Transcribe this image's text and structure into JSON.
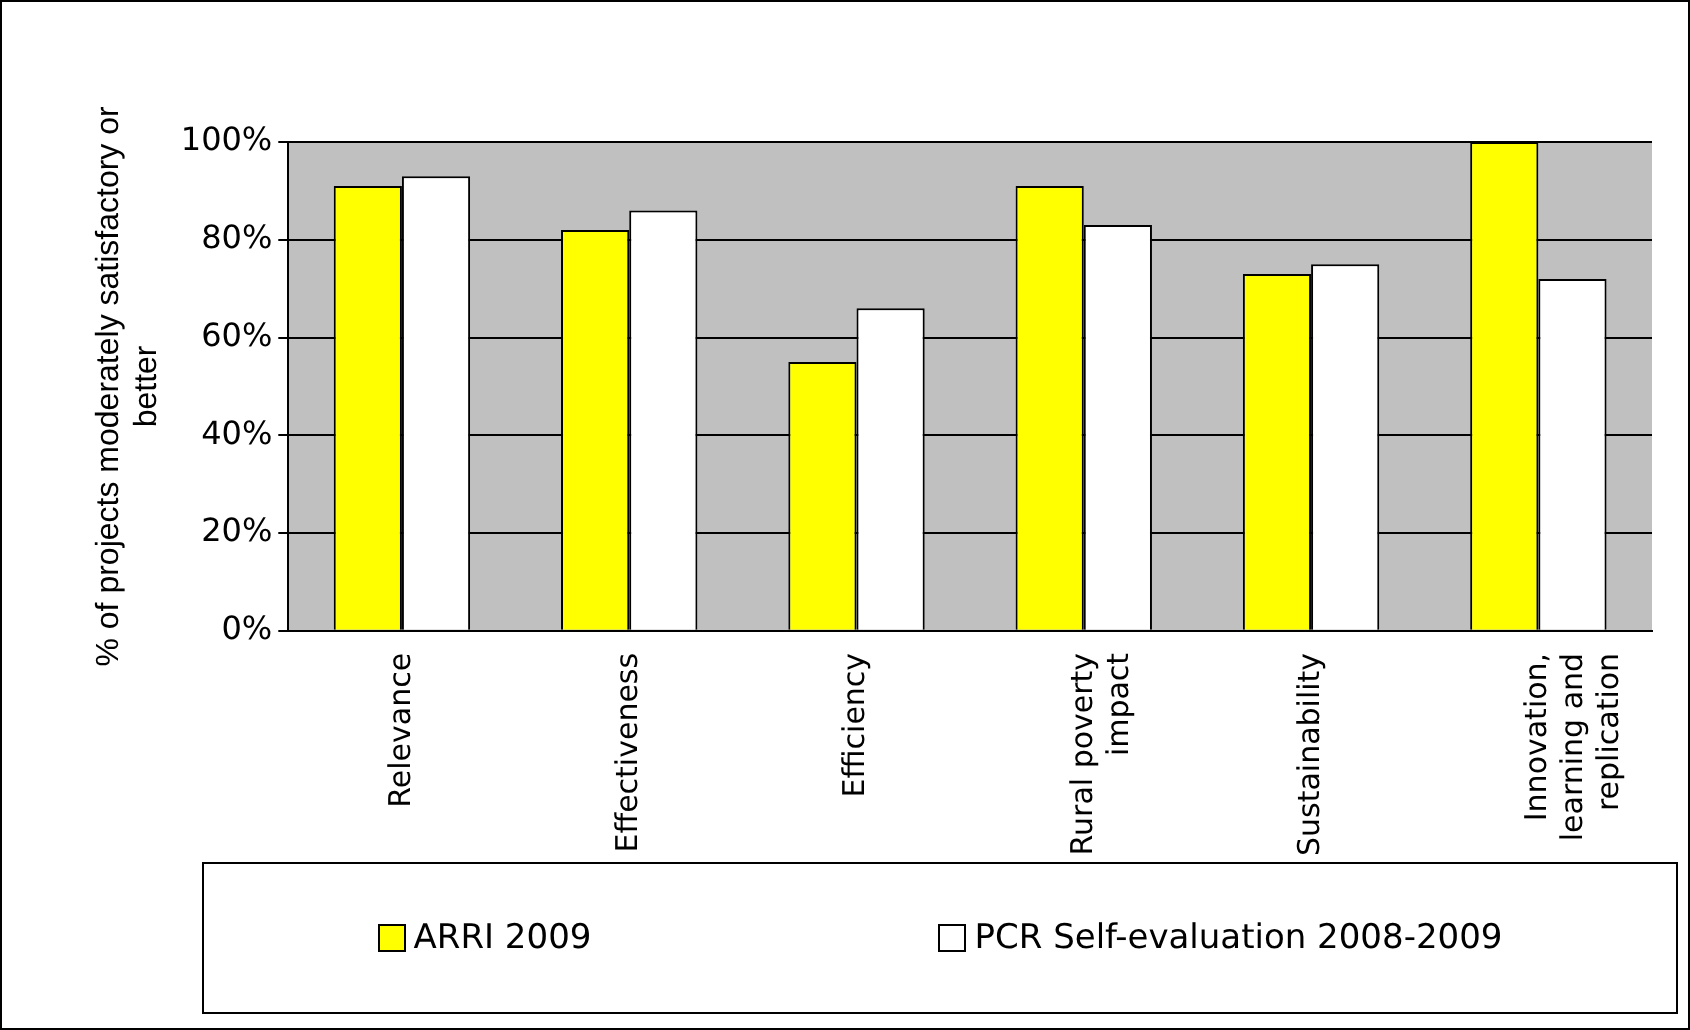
{
  "chart_data": {
    "type": "bar",
    "ylabel": "% of projects moderately satisfactory or better",
    "categories": [
      "Relevance",
      "Effectiveness",
      "Efficiency",
      "Rural poverty impact",
      "Sustainability",
      "Innovation, learning and replication"
    ],
    "series": [
      {
        "name": "ARRI 2009",
        "color": "#ffff00",
        "values": [
          91,
          82,
          55,
          91,
          73,
          100
        ]
      },
      {
        "name": "PCR Self-evaluation 2008-2009",
        "color": "#ffffff",
        "values": [
          93,
          86,
          66,
          83,
          75,
          72
        ]
      }
    ],
    "ylim": [
      0,
      100
    ],
    "yticks": [
      {
        "value": 0,
        "label": "0%"
      },
      {
        "value": 20,
        "label": "20%"
      },
      {
        "value": 40,
        "label": "40%"
      },
      {
        "value": 60,
        "label": "60%"
      },
      {
        "value": 80,
        "label": "80%"
      },
      {
        "value": 100,
        "label": "100%"
      }
    ],
    "grid": "y",
    "legend": "bottom"
  }
}
